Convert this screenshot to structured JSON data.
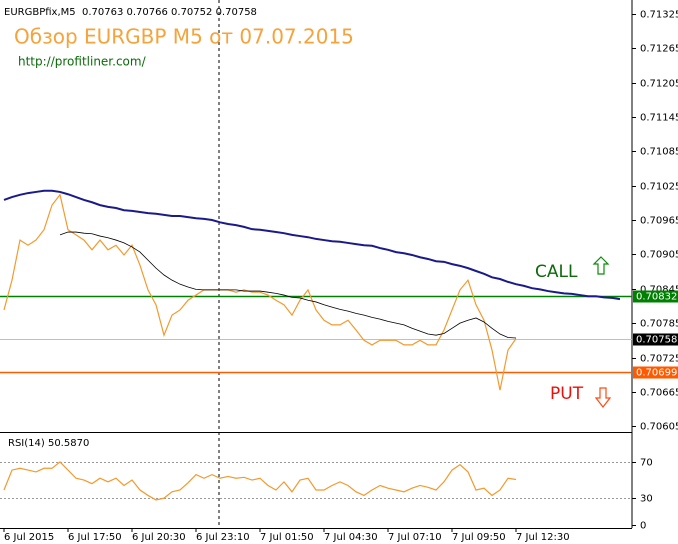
{
  "chart_data": [
    {
      "type": "line",
      "header": "EURGBPfix,M5  0.70763 0.70766 0.70752 0.70758",
      "title": "Обзор EURGBP M5 от 07.07.2015",
      "subtitle": "http://profitliner.com/",
      "ylim": [
        0.70595,
        0.71349
      ],
      "yticks": [
        0.71325,
        0.71265,
        0.71205,
        0.71145,
        0.71085,
        0.71025,
        0.70965,
        0.70905,
        0.70845,
        0.70785,
        0.70725,
        0.70665,
        0.70605
      ],
      "price_lines": [
        {
          "value": 0.70832,
          "color": "#008000"
        },
        {
          "value": 0.70758,
          "color": "#000000"
        },
        {
          "value": 0.70699,
          "color": "#ff5a00"
        }
      ],
      "annotations": [
        {
          "text": "CALL",
          "color": "#0b6b0b"
        },
        {
          "text": "PUT",
          "color": "#e8120c"
        }
      ],
      "series": [
        {
          "color": "#f29a2e",
          "width": 1.2,
          "values": [
            0.70808,
            0.7086,
            0.7093,
            0.70921,
            0.7093,
            0.70948,
            0.70991,
            0.71009,
            0.70948,
            0.70939,
            0.7093,
            0.70913,
            0.7093,
            0.70913,
            0.70921,
            0.70904,
            0.70921,
            0.70886,
            0.70843,
            0.70817,
            0.70764,
            0.70799,
            0.70808,
            0.70825,
            0.70834,
            0.70843,
            0.70843,
            0.70843,
            0.70843,
            0.70839,
            0.70843,
            0.70839,
            0.70839,
            0.70834,
            0.70825,
            0.70817,
            0.70799,
            0.70825,
            0.70843,
            0.70808,
            0.7079,
            0.70782,
            0.70782,
            0.7079,
            0.70773,
            0.70755,
            0.70747,
            0.70755,
            0.70755,
            0.70755,
            0.70747,
            0.70747,
            0.70755,
            0.70747,
            0.70747,
            0.70773,
            0.70808,
            0.70843,
            0.7086,
            0.70817,
            0.7079,
            0.70738,
            0.70668,
            0.70738,
            0.70758,
            null,
            null,
            null,
            null,
            null,
            null,
            null,
            null,
            null,
            null,
            null,
            null,
            null
          ]
        },
        {
          "color": "#000000",
          "width": 0.8,
          "values": [
            null,
            null,
            null,
            null,
            null,
            null,
            null,
            0.70939,
            0.70944,
            0.70944,
            0.70942,
            0.70941,
            0.70937,
            0.70934,
            0.7093,
            0.70925,
            0.70918,
            0.70909,
            0.70895,
            0.70881,
            0.70869,
            0.7086,
            0.70853,
            0.70848,
            0.70844,
            0.70843,
            0.70843,
            0.70843,
            0.70843,
            0.70843,
            0.70841,
            0.70841,
            0.70841,
            0.70839,
            0.70837,
            0.70834,
            0.7083,
            0.70829,
            0.70825,
            0.70822,
            0.70817,
            0.70813,
            0.70809,
            0.70806,
            0.70802,
            0.70799,
            0.70795,
            0.70792,
            0.70788,
            0.70785,
            0.70782,
            0.70776,
            0.70771,
            0.70766,
            0.70764,
            0.70767,
            0.70776,
            0.70785,
            0.7079,
            0.70794,
            0.70787,
            0.70776,
            0.70766,
            0.7076,
            0.70759,
            null,
            null,
            null,
            null,
            null,
            null,
            null,
            null,
            null,
            null,
            null,
            null,
            null
          ]
        },
        {
          "color": "#1a1a8a",
          "width": 2,
          "values": [
            0.71,
            0.71005,
            0.71009,
            0.71012,
            0.71014,
            0.71016,
            0.71016,
            0.71014,
            0.7101,
            0.71005,
            0.71,
            0.70996,
            0.70991,
            0.70988,
            0.70986,
            0.70982,
            0.70981,
            0.70979,
            0.70977,
            0.70976,
            0.70974,
            0.70972,
            0.70972,
            0.7097,
            0.70968,
            0.70967,
            0.70965,
            0.70961,
            0.70958,
            0.70956,
            0.70953,
            0.70949,
            0.70948,
            0.70946,
            0.70944,
            0.70942,
            0.70939,
            0.70937,
            0.70935,
            0.70932,
            0.7093,
            0.70928,
            0.70927,
            0.70925,
            0.70923,
            0.70921,
            0.7092,
            0.70916,
            0.70913,
            0.70909,
            0.70907,
            0.70904,
            0.709,
            0.70897,
            0.70893,
            0.70892,
            0.70888,
            0.70885,
            0.70881,
            0.70876,
            0.70871,
            0.70865,
            0.70862,
            0.70857,
            0.70853,
            0.7085,
            0.70846,
            0.70844,
            0.70841,
            0.70839,
            0.70837,
            0.70836,
            0.70834,
            0.70832,
            0.70832,
            0.7083,
            0.70829,
            0.70827
          ]
        }
      ]
    },
    {
      "type": "line",
      "label": "RSI(14) 50.5870",
      "ylim": [
        -3,
        102
      ],
      "yticks": [
        0,
        30,
        70
      ],
      "levels": [
        30,
        70
      ],
      "categories": [
        "6 Jul 2015",
        null,
        null,
        null,
        null,
        null,
        null,
        null,
        "6 Jul 17:50",
        null,
        null,
        null,
        null,
        null,
        null,
        null,
        "6 Jul 20:30",
        null,
        null,
        null,
        null,
        null,
        null,
        null,
        "6 Jul 23:10",
        null,
        null,
        null,
        null,
        null,
        null,
        null,
        "7 Jul 01:50",
        null,
        null,
        null,
        null,
        null,
        null,
        null,
        "7 Jul 04:30",
        null,
        null,
        null,
        null,
        null,
        null,
        null,
        "7 Jul 07:10",
        null,
        null,
        null,
        null,
        null,
        null,
        null,
        "7 Jul 09:50",
        null,
        null,
        null,
        null,
        null,
        null,
        null,
        "7 Jul 12:30",
        null,
        null,
        null,
        null,
        null,
        null,
        null,
        null,
        null,
        null,
        null,
        null,
        null
      ],
      "series": [
        {
          "color": "#f29a2e",
          "width": 1.2,
          "values": [
            39,
            61,
            63,
            61,
            59,
            63,
            63,
            70,
            61,
            52,
            50,
            46,
            52,
            48,
            52,
            44,
            50,
            39,
            33,
            28,
            30,
            37,
            39,
            47,
            56,
            52,
            56,
            52,
            54,
            52,
            53,
            50,
            52,
            44,
            39,
            48,
            37,
            50,
            52,
            39,
            39,
            44,
            48,
            44,
            37,
            33,
            39,
            44,
            41,
            39,
            37,
            41,
            44,
            42,
            39,
            48,
            61,
            67,
            59,
            39,
            41,
            33,
            39,
            52,
            50.587,
            null,
            null,
            null,
            null,
            null,
            null,
            null,
            null,
            null,
            null,
            null,
            null,
            null
          ]
        }
      ]
    }
  ]
}
